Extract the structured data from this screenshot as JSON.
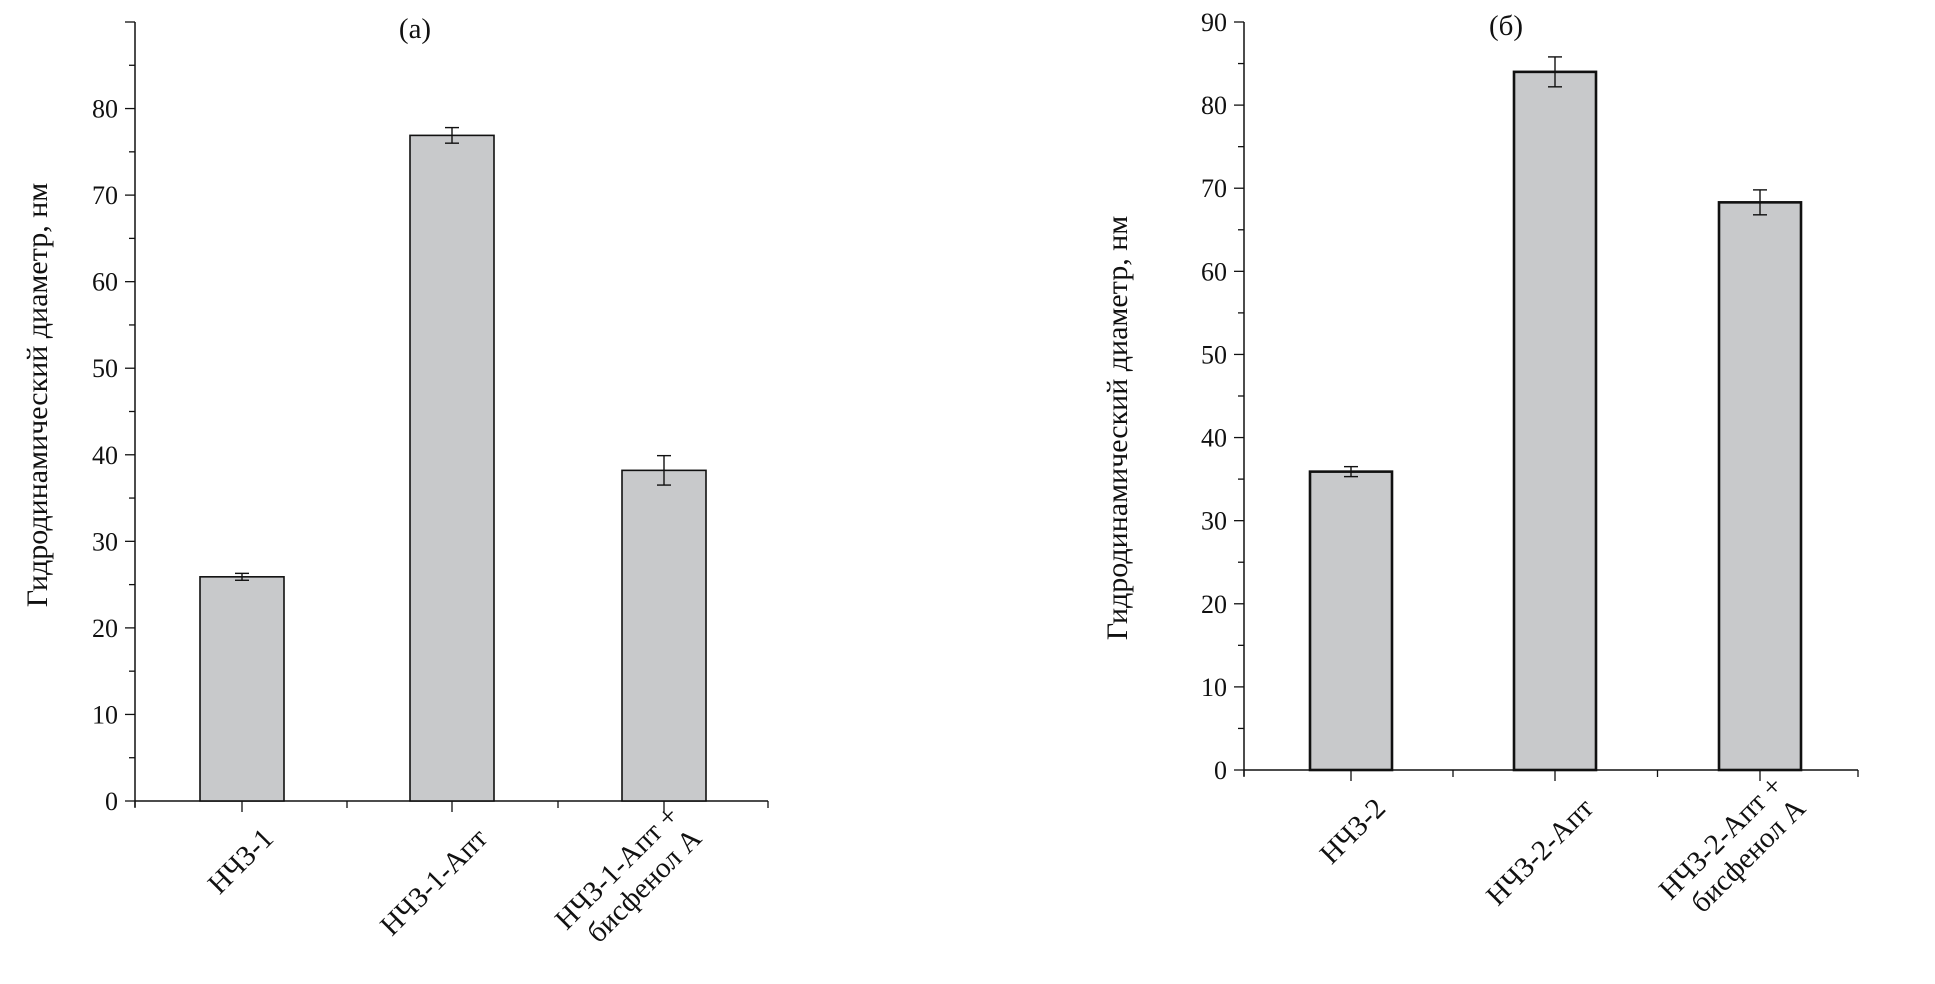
{
  "chart_data": [
    {
      "type": "bar",
      "title": "(а)",
      "ylabel": "Гидродинамический диаметр, нм",
      "xlabel": "",
      "ylim": [
        0,
        90
      ],
      "yticks": [
        0,
        10,
        20,
        30,
        40,
        50,
        60,
        70,
        80
      ],
      "grid": false,
      "categories": [
        [
          "НЧЗ-1"
        ],
        [
          "НЧЗ-1-Апт"
        ],
        [
          "НЧЗ-1-Апт +",
          "бисфенол А"
        ]
      ],
      "values": [
        25.9,
        76.9,
        38.2
      ],
      "errors": [
        0.4,
        0.9,
        1.7
      ],
      "bar_color": "#c8c9cb"
    },
    {
      "type": "bar",
      "title": "(б)",
      "ylabel": "Гидродинамический диаметр, нм",
      "xlabel": "",
      "ylim": [
        0,
        90
      ],
      "yticks": [
        0,
        10,
        20,
        30,
        40,
        50,
        60,
        70,
        80,
        90
      ],
      "grid": false,
      "categories": [
        [
          "НЧЗ-2"
        ],
        [
          "НЧЗ-2-Апт"
        ],
        [
          "НЧЗ-2-Апт +",
          "бисфенол А"
        ]
      ],
      "values": [
        35.9,
        84.0,
        68.3
      ],
      "errors": [
        0.6,
        1.8,
        1.5
      ],
      "bar_color": "#c8c9cb"
    }
  ]
}
